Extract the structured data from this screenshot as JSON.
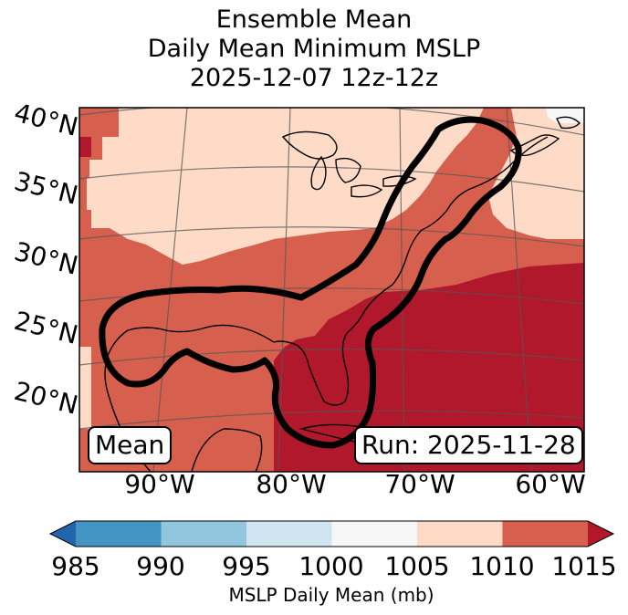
{
  "title": {
    "line1": "Ensemble Mean",
    "line2": "Daily Mean Minimum MSLP",
    "line3": "2025-12-07 12z-12z"
  },
  "map": {
    "lat_labels": [
      "40°N",
      "35°N",
      "30°N",
      "25°N",
      "20°N"
    ],
    "lon_labels": [
      "90°W",
      "80°W",
      "70°W",
      "60°W"
    ],
    "mean_label": "Mean",
    "run_label": "Run: 2025-11-28",
    "fill_colors": {
      "c1005_1010": "#fddbc7",
      "c1010_1015": "#d6604d",
      "c1015_plus": "#b2182b",
      "ocean_nodata": "#f7f7f7"
    },
    "contour_color": "#000000"
  },
  "colorbar": {
    "ticks": [
      "985",
      "990",
      "995",
      "1000",
      "1005",
      "1010",
      "1015"
    ],
    "colors": [
      "#4393c3",
      "#92c5de",
      "#d1e5f0",
      "#f7f7f7",
      "#fddbc7",
      "#d6604d"
    ],
    "under_color": "#2166ac",
    "over_color": "#b2182b",
    "label": "MSLP Daily Mean (mb)"
  }
}
